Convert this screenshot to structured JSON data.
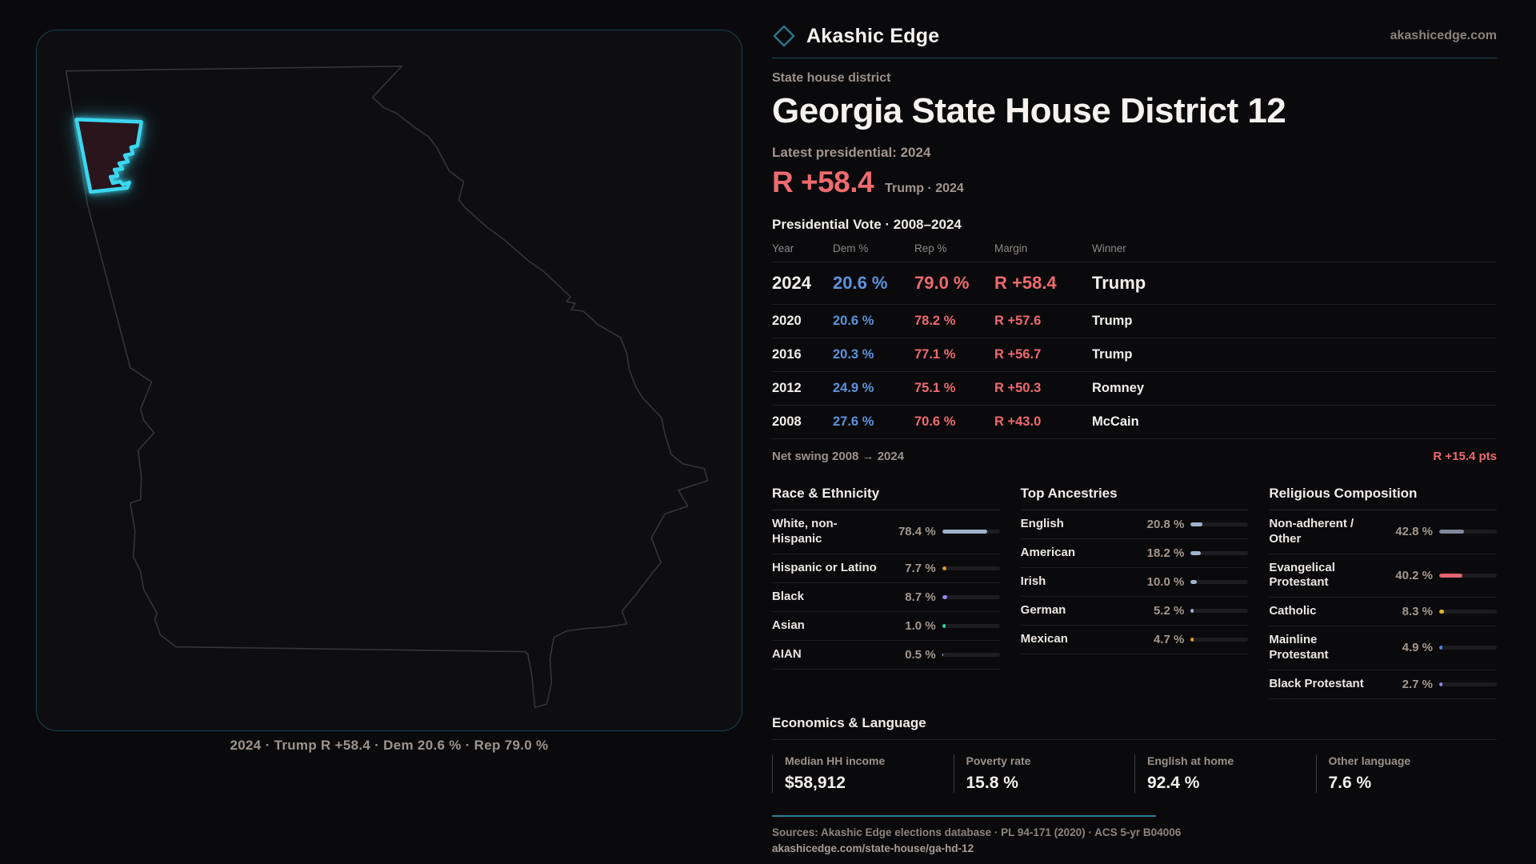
{
  "brand": {
    "name": "Akashic Edge",
    "domain": "akashicedge.com"
  },
  "map": {
    "caption": "2024 · Trump R +58.4 · Dem 20.6 % · Rep 79.0 %"
  },
  "header": {
    "kicker": "State house district",
    "title": "Georgia State House District 12",
    "latest_label": "Latest presidential: 2024",
    "headline_margin": "R +58.4",
    "headline_sub": "Trump · 2024"
  },
  "vote_table": {
    "title": "Presidential Vote · 2008–2024",
    "columns": [
      "Year",
      "Dem %",
      "Rep %",
      "Margin",
      "Winner"
    ],
    "rows": [
      {
        "year": "2024",
        "dem": "20.6 %",
        "rep": "79.0 %",
        "margin": "R +58.4",
        "winner": "Trump",
        "highlight": true
      },
      {
        "year": "2020",
        "dem": "20.6 %",
        "rep": "78.2 %",
        "margin": "R +57.6",
        "winner": "Trump",
        "highlight": false
      },
      {
        "year": "2016",
        "dem": "20.3 %",
        "rep": "77.1 %",
        "margin": "R +56.7",
        "winner": "Trump",
        "highlight": false
      },
      {
        "year": "2012",
        "dem": "24.9 %",
        "rep": "75.1 %",
        "margin": "R +50.3",
        "winner": "Romney",
        "highlight": false
      },
      {
        "year": "2008",
        "dem": "27.6 %",
        "rep": "70.6 %",
        "margin": "R +43.0",
        "winner": "McCain",
        "highlight": false
      }
    ],
    "net_swing_label": "Net swing 2008 → 2024",
    "net_swing_value": "R +15.4 pts"
  },
  "demographics": [
    {
      "title": "Race & Ethnicity",
      "items": [
        {
          "label": "White, non-Hispanic",
          "value": "78.4 %",
          "pct": 78.4,
          "color": "#9fb3cf"
        },
        {
          "label": "Hispanic or Latino",
          "value": "7.7 %",
          "pct": 7.7,
          "color": "#e8962a"
        },
        {
          "label": "Black",
          "value": "8.7 %",
          "pct": 8.7,
          "color": "#9184e2"
        },
        {
          "label": "Asian",
          "value": "1.0 %",
          "pct": 1.0,
          "color": "#2fd6a3"
        },
        {
          "label": "AIAN",
          "value": "0.5 %",
          "pct": 0.5,
          "color": "#9fb3cf"
        }
      ]
    },
    {
      "title": "Top Ancestries",
      "items": [
        {
          "label": "English",
          "value": "20.8 %",
          "pct": 20.8,
          "color": "#9fb3cf"
        },
        {
          "label": "American",
          "value": "18.2 %",
          "pct": 18.2,
          "color": "#9fb3cf"
        },
        {
          "label": "Irish",
          "value": "10.0 %",
          "pct": 10.0,
          "color": "#9fb3cf"
        },
        {
          "label": "German",
          "value": "5.2 %",
          "pct": 5.2,
          "color": "#9fb3cf"
        },
        {
          "label": "Mexican",
          "value": "4.7 %",
          "pct": 4.7,
          "color": "#e89b22"
        }
      ]
    },
    {
      "title": "Religious Composition",
      "items": [
        {
          "label": "Non-adherent / Other",
          "value": "42.8 %",
          "pct": 42.8,
          "color": "#7f8a9b"
        },
        {
          "label": "Evangelical Protestant",
          "value": "40.2 %",
          "pct": 40.2,
          "color": "#e26570"
        },
        {
          "label": "Catholic",
          "value": "8.3 %",
          "pct": 8.3,
          "color": "#e7b42a"
        },
        {
          "label": "Mainline Protestant",
          "value": "4.9 %",
          "pct": 4.9,
          "color": "#4d82dd"
        },
        {
          "label": "Black Protestant",
          "value": "2.7 %",
          "pct": 2.7,
          "color": "#9a80dc"
        }
      ]
    }
  ],
  "economics": {
    "title": "Economics & Language",
    "stats": [
      {
        "label": "Median HH income",
        "value": "$58,912"
      },
      {
        "label": "Poverty rate",
        "value": "15.8 %"
      },
      {
        "label": "English at home",
        "value": "92.4 %"
      },
      {
        "label": "Other language",
        "value": "7.6 %"
      }
    ]
  },
  "footer": {
    "sources": "Sources: Akashic Edge elections database · PL 94-171 (2020) · ACS 5-yr B04006",
    "permalink": "akashicedge.com/state-house/ga-hd-12"
  },
  "colors": {
    "accent_teal": "#2c7d92",
    "accent_red": "#ef6a6e",
    "accent_blue": "#5b93dd",
    "district_cyan": "#3bd7f0"
  }
}
